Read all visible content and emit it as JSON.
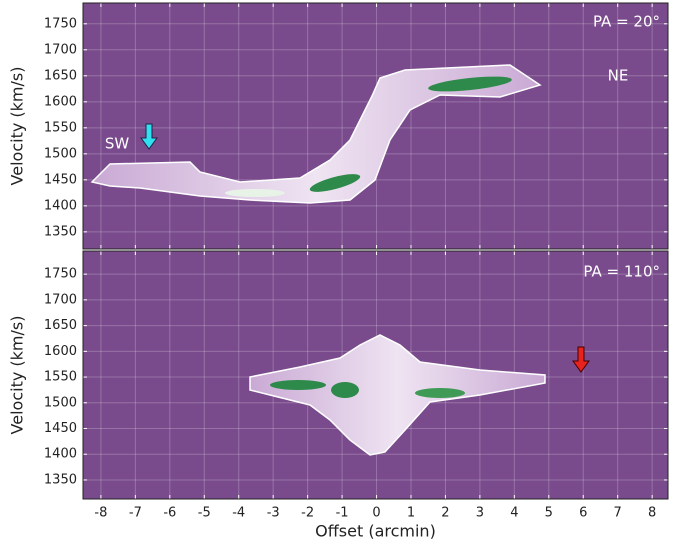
{
  "chart_data": [
    {
      "type": "heatmap",
      "ylabel": "Velocity (km/s)",
      "xlim": [
        -8.52,
        8.46
      ],
      "ylim": [
        1317,
        1790
      ],
      "xticks": [
        -8,
        -7,
        -6,
        -5,
        -4,
        -3,
        -2,
        -1,
        0,
        1,
        2,
        3,
        4,
        5,
        6,
        7,
        8
      ],
      "yticks": [
        1350,
        1400,
        1450,
        1500,
        1550,
        1600,
        1650,
        1700,
        1750
      ],
      "grid": true,
      "background": "#7a4b8c",
      "annotations": [
        "PA = 20°",
        "SW",
        "NE"
      ]
    },
    {
      "type": "heatmap",
      "ylabel": "Velocity (km/s)",
      "xlabel": "Offset (arcmin)",
      "xlim": [
        -8.52,
        8.46
      ],
      "ylim": [
        1313,
        1795
      ],
      "xticks": [
        -8,
        -7,
        -6,
        -5,
        -4,
        -3,
        -2,
        -1,
        0,
        1,
        2,
        3,
        4,
        5,
        6,
        7,
        8
      ],
      "yticks": [
        1350,
        1400,
        1450,
        1500,
        1550,
        1600,
        1650,
        1700,
        1750
      ],
      "grid": true,
      "background": "#7a4b8c",
      "annotations": [
        "PA = 110°"
      ]
    }
  ]
}
